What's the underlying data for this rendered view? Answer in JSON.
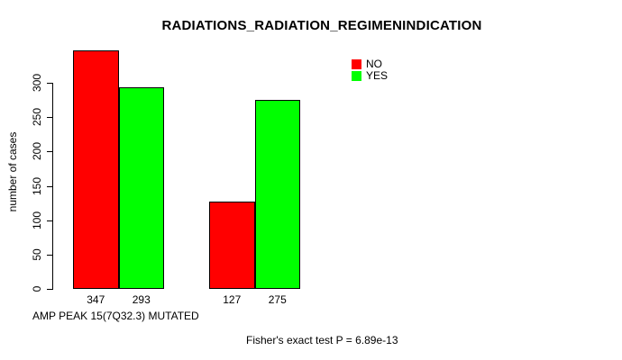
{
  "chart_data": {
    "type": "bar",
    "title": "RADIATIONS_RADIATION_REGIMENINDICATION",
    "ylabel": "number of cases",
    "xlabel": "AMP PEAK 15(7Q32.3) MUTATED",
    "annotation": "Fisher's exact test P = 6.89e-13",
    "categories": [
      "",
      ""
    ],
    "series": [
      {
        "name": "NO",
        "color": "#ff0000",
        "values": [
          347,
          127
        ]
      },
      {
        "name": "YES",
        "color": "#00ff00",
        "values": [
          293,
          275
        ]
      }
    ],
    "yticks": [
      0,
      50,
      100,
      150,
      200,
      250,
      300
    ],
    "ylim": [
      0,
      350
    ],
    "grid": false,
    "legend_position": "top-right",
    "value_labels_shown": true,
    "colors": {
      "bar_border": "#000000",
      "axis": "#000000",
      "text": "#000000",
      "background": "#ffffff"
    }
  }
}
